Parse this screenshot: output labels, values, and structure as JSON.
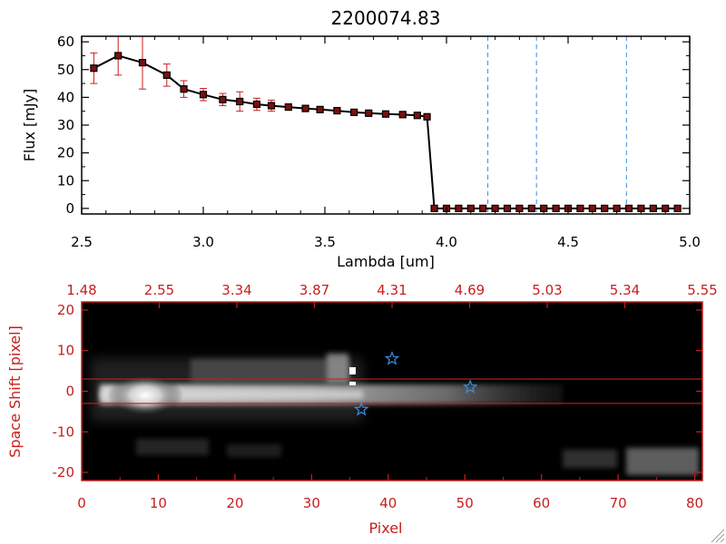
{
  "colors": {
    "red": "#c81e1e",
    "black": "#000000",
    "blue_dash": "#3a8ee0",
    "star": "#3a8ee0",
    "image_bg": "#000000"
  },
  "icons": {
    "corner": "resize-grip-icon",
    "marker": "star-icon"
  },
  "chart_data": [
    {
      "type": "line",
      "title": "2200074.83",
      "xlabel": "Lambda [um]",
      "ylabel": "Flux [mJy]",
      "xlim": [
        2.5,
        5.0
      ],
      "ylim": [
        -2,
        62
      ],
      "xticks": [
        "2.5",
        "3.0",
        "3.5",
        "4.0",
        "4.5",
        "5.0"
      ],
      "xtick_values": [
        2.5,
        3.0,
        3.5,
        4.0,
        4.5,
        5.0
      ],
      "yticks": [
        "0",
        "10",
        "20",
        "30",
        "40",
        "50",
        "60"
      ],
      "ytick_values": [
        0,
        10,
        20,
        30,
        40,
        50,
        60
      ],
      "grid": false,
      "series": [
        {
          "x": [
            2.55,
            2.65,
            2.75,
            2.85,
            2.92,
            3.0,
            3.08,
            3.15,
            3.22,
            3.28,
            3.35,
            3.42,
            3.48,
            3.55,
            3.62,
            3.68,
            3.75,
            3.82,
            3.88,
            3.92,
            3.95,
            4.0,
            4.05,
            4.1,
            4.15,
            4.2,
            4.25,
            4.3,
            4.35,
            4.4,
            4.45,
            4.5,
            4.55,
            4.6,
            4.65,
            4.7,
            4.75,
            4.8,
            4.85,
            4.9,
            4.95
          ],
          "y": [
            50.5,
            55,
            52.5,
            48,
            43,
            41,
            39.2,
            38.5,
            37.5,
            37,
            36.5,
            36,
            35.6,
            35.2,
            34.6,
            34.3,
            34,
            33.8,
            33.5,
            33,
            0,
            0,
            0,
            0,
            0,
            0,
            0,
            0,
            0,
            0,
            0,
            0,
            0,
            0,
            0,
            0,
            0,
            0,
            0,
            0,
            0
          ],
          "yerr": [
            5.5,
            7,
            9.5,
            4,
            3,
            2.2,
            2.2,
            3.5,
            2.2,
            2,
            1,
            0.6,
            0.5,
            0.5,
            0.4,
            0.4,
            0.3,
            0.3,
            0.3,
            0.3,
            0,
            0,
            0,
            0,
            0,
            0,
            0,
            0,
            0,
            0,
            0,
            0,
            0,
            0,
            0,
            0,
            0,
            0,
            0,
            0,
            0
          ]
        }
      ],
      "vlines": [
        4.17,
        4.37,
        4.74
      ],
      "hline": 0
    },
    {
      "type": "heatmap",
      "xlabel": "Pixel",
      "ylabel": "Space Shift [pixel]",
      "xlim": [
        0,
        81
      ],
      "ylim": [
        -22,
        22
      ],
      "xticks": [
        "0",
        "10",
        "20",
        "30",
        "40",
        "50",
        "60",
        "70",
        "80"
      ],
      "xtick_values": [
        0,
        10,
        20,
        30,
        40,
        50,
        60,
        70,
        80
      ],
      "yticks": [
        "20",
        "10",
        "0",
        "-10",
        "-20"
      ],
      "ytick_values": [
        20,
        10,
        0,
        -10,
        -20
      ],
      "top_xticks": [
        "1.48",
        "2.55",
        "3.34",
        "3.87",
        "4.31",
        "4.69",
        "5.03",
        "5.34",
        "5.55"
      ],
      "hlines": [
        3,
        -3
      ],
      "stars": [
        {
          "x": 40.5,
          "y": 8
        },
        {
          "x": 50.7,
          "y": 1
        },
        {
          "x": 36.5,
          "y": -4.5
        }
      ]
    }
  ]
}
